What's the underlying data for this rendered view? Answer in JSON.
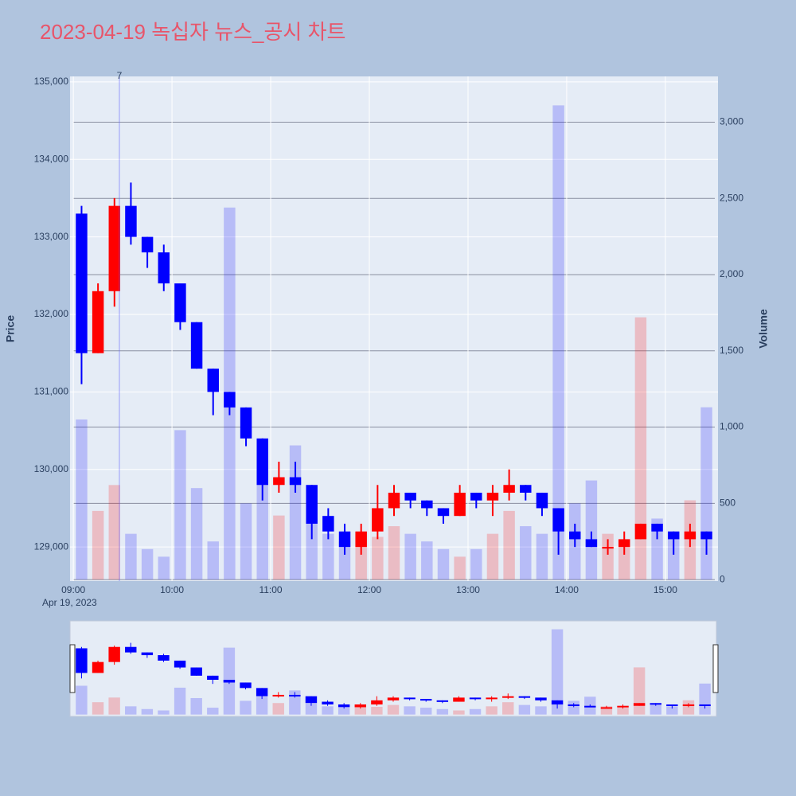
{
  "chart_data": {
    "type": "candlestick",
    "title": "2023-04-19 녹십자 뉴스_공시 차트",
    "y_label": "Price",
    "y2_label": "Volume",
    "x_date_label": "Apr 19, 2023",
    "increasing_color": "#ff0000",
    "decreasing_color": "#0000ff",
    "x": [
      "09:00",
      "09:10",
      "09:20",
      "09:30",
      "09:40",
      "09:50",
      "10:00",
      "10:10",
      "10:20",
      "10:30",
      "10:40",
      "10:50",
      "11:00",
      "11:10",
      "11:20",
      "11:30",
      "11:40",
      "11:50",
      "12:00",
      "12:10",
      "12:20",
      "12:30",
      "12:40",
      "12:50",
      "13:00",
      "13:10",
      "13:20",
      "13:30",
      "13:40",
      "13:50",
      "14:00",
      "14:10",
      "14:20",
      "14:30",
      "14:40",
      "14:50",
      "15:00",
      "15:10",
      "15:20"
    ],
    "open": [
      133300,
      131500,
      132300,
      133400,
      133000,
      132800,
      132400,
      131900,
      131300,
      131000,
      130800,
      130400,
      129800,
      129900,
      129800,
      129400,
      129200,
      129000,
      129200,
      129500,
      129700,
      129600,
      129500,
      129400,
      129700,
      129600,
      129700,
      129800,
      129700,
      129500,
      129200,
      129100,
      129000,
      129000,
      129100,
      129300,
      129200,
      129100,
      129200
    ],
    "high": [
      133400,
      132400,
      133500,
      133700,
      133000,
      132900,
      132400,
      131900,
      131300,
      131000,
      130800,
      130400,
      130100,
      130100,
      129800,
      129500,
      129300,
      129300,
      129800,
      129800,
      129700,
      129600,
      129500,
      129800,
      129700,
      129800,
      130000,
      129800,
      129700,
      129500,
      129300,
      129200,
      129100,
      129200,
      129300,
      129300,
      129200,
      129300,
      129200
    ],
    "low": [
      131100,
      131500,
      132100,
      132900,
      132600,
      132300,
      131800,
      131300,
      130700,
      130700,
      130300,
      129600,
      129700,
      129700,
      129100,
      129100,
      128900,
      128900,
      129100,
      129400,
      129500,
      129400,
      129300,
      129400,
      129500,
      129400,
      129600,
      129600,
      129400,
      128900,
      129000,
      129000,
      128900,
      128900,
      129100,
      129100,
      128900,
      129000,
      128900
    ],
    "close": [
      131500,
      132300,
      133400,
      133000,
      132800,
      132400,
      131900,
      131300,
      131000,
      130800,
      130400,
      129800,
      129900,
      129800,
      129300,
      129200,
      129000,
      129200,
      129500,
      129700,
      129600,
      129500,
      129400,
      129700,
      129600,
      129700,
      129800,
      129700,
      129500,
      129200,
      129100,
      129000,
      129000,
      129100,
      129300,
      129200,
      129100,
      129200,
      129100
    ],
    "volume": [
      1050,
      450,
      620,
      300,
      200,
      150,
      980,
      600,
      250,
      2440,
      500,
      650,
      420,
      880,
      400,
      300,
      250,
      300,
      280,
      350,
      300,
      250,
      200,
      150,
      200,
      300,
      450,
      350,
      300,
      3110,
      500,
      650,
      300,
      250,
      1720,
      400,
      300,
      520,
      1130
    ],
    "xlim": [
      "08:58",
      "15:32"
    ],
    "xticks": [
      "09:00",
      "10:00",
      "11:00",
      "12:00",
      "13:00",
      "14:00",
      "15:00"
    ],
    "ylim": [
      128560,
      135070
    ],
    "yticks": [
      {
        "value": 129000,
        "label": "129,000"
      },
      {
        "value": 130000,
        "label": "130,000"
      },
      {
        "value": 131000,
        "label": "131,000"
      },
      {
        "value": 132000,
        "label": "132,000"
      },
      {
        "value": 133000,
        "label": "133,000"
      },
      {
        "value": 134000,
        "label": "134,000"
      },
      {
        "value": 135000,
        "label": "135,000"
      }
    ],
    "y2lim": [
      -10,
      3300
    ],
    "y2ticks": [
      0,
      500,
      {
        "value": 1000,
        "label": "1,000"
      },
      {
        "value": 1500,
        "label": "1,500"
      },
      {
        "value": 2000,
        "label": "2,000"
      },
      {
        "value": 2500,
        "label": "2,500"
      },
      {
        "value": 3000,
        "label": "3,000"
      }
    ],
    "events": [
      {
        "x": "09:28",
        "label": "7"
      }
    ]
  }
}
